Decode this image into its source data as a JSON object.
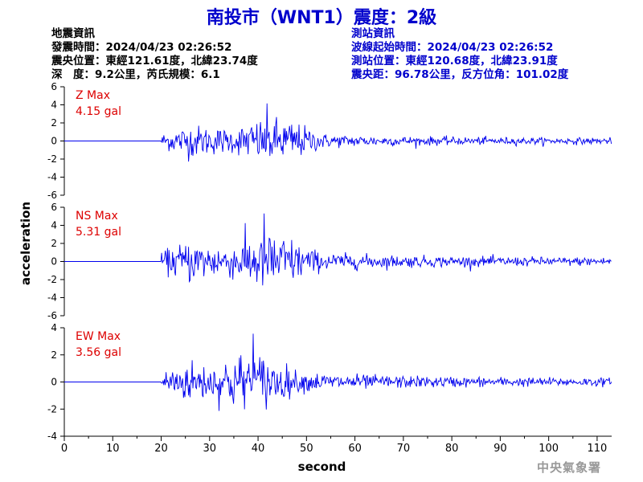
{
  "header": {
    "title": "南投市（WNT1）震度：2級"
  },
  "quake_info": {
    "heading": "地震資訊",
    "time": "發震時間：2024/04/23 02:26:52",
    "epicenter": "震央位置：東經121.61度，北緯23.74度",
    "depth_mag": "深　度：9.2公里，芮氏規模：6.1"
  },
  "station_info": {
    "heading": "測站資訊",
    "wave_start": "波線起始時間：2024/04/23 02:26:52",
    "location": "測站位置：東經120.68度，北緯23.91度",
    "distance": "震央距：96.78公里，反方位角：101.02度"
  },
  "footer": {
    "brand": "中央氣象署"
  },
  "colors": {
    "trace": "#0000ee",
    "max_label": "#dd0000",
    "title": "#0000cc"
  },
  "chart_data": {
    "type": "line",
    "xlabel": "second",
    "ylabel": "acceleration",
    "xlim": [
      0,
      113
    ],
    "xticks": [
      0,
      10,
      20,
      30,
      40,
      50,
      60,
      70,
      80,
      90,
      100,
      110
    ],
    "event_onset_s": 20,
    "panels": [
      {
        "name": "Z",
        "label": "Z Max",
        "max_text": "4.15 gal",
        "max": 4.15,
        "ylim": [
          -6,
          6
        ],
        "yticks": [
          6,
          4,
          2,
          0,
          -2,
          -4,
          -6
        ],
        "peak_time_s": 43
      },
      {
        "name": "NS",
        "label": "NS Max",
        "max_text": "5.31 gal",
        "max": 5.31,
        "ylim": [
          -6,
          6
        ],
        "yticks": [
          6,
          4,
          2,
          0,
          -2,
          -4,
          -6
        ],
        "peak_time_s": 42
      },
      {
        "name": "EW",
        "label": "EW Max",
        "max_text": "3.56 gal",
        "max": 3.56,
        "ylim": [
          -4,
          4
        ],
        "yticks": [
          4,
          2,
          0,
          -2,
          -4
        ],
        "peak_time_s": 38
      }
    ]
  }
}
